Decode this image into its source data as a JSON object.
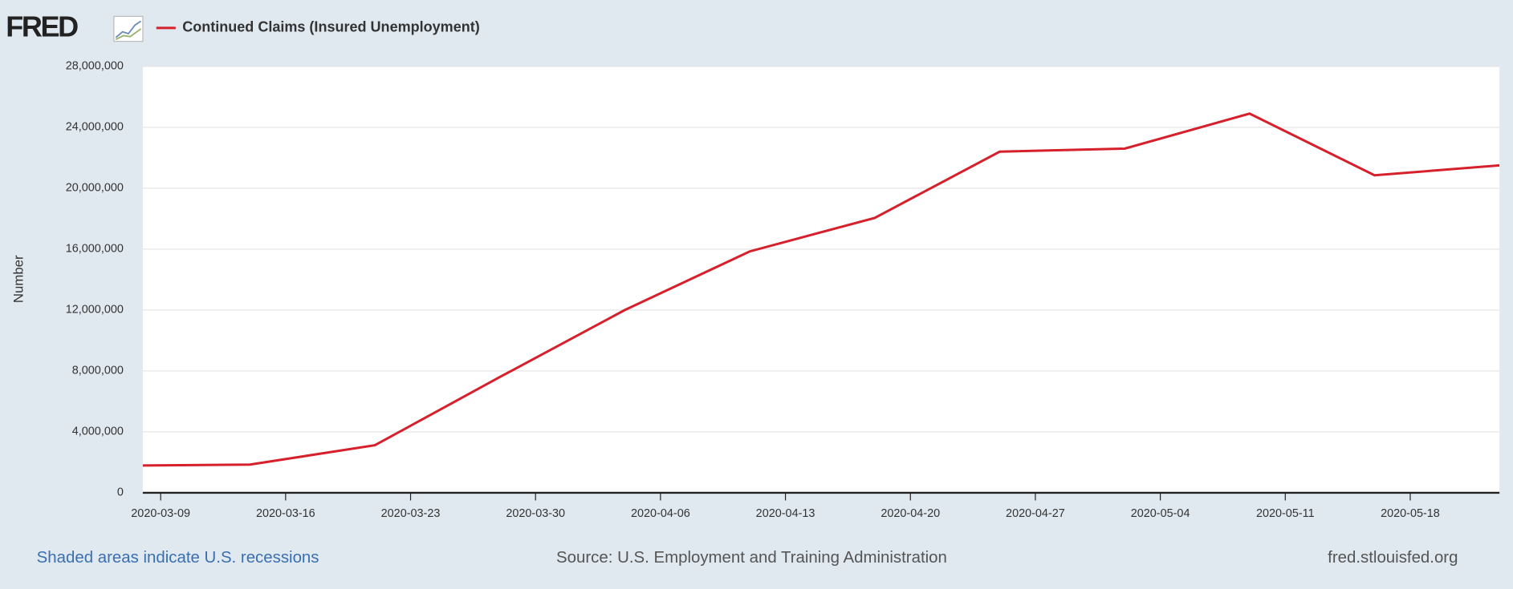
{
  "logo": "FRED",
  "chart_data": {
    "type": "line",
    "ylabel": "Number",
    "x": [
      "2020-03-07",
      "2020-03-14",
      "2020-03-21",
      "2020-03-28",
      "2020-04-04",
      "2020-04-11",
      "2020-04-18",
      "2020-04-25",
      "2020-05-02",
      "2020-05-09",
      "2020-05-16",
      "2020-05-23"
    ],
    "series": [
      {
        "name": "Continued Claims (Insured Unemployment)",
        "color": "#d6202b",
        "values": [
          1780000,
          1850000,
          3120000,
          7600000,
          12000000,
          15850000,
          18050000,
          22400000,
          22600000,
          24900000,
          20850000,
          21500000
        ]
      }
    ],
    "xlim": [
      "2020-03-08",
      "2020-05-23"
    ],
    "xticks": [
      "2020-03-09",
      "2020-03-16",
      "2020-03-23",
      "2020-03-30",
      "2020-04-06",
      "2020-04-13",
      "2020-04-20",
      "2020-04-27",
      "2020-05-04",
      "2020-05-11",
      "2020-05-18"
    ],
    "ylim": [
      0,
      28000000
    ],
    "yticks": [
      0,
      {
        "value": 4000000,
        "label": "4,000,000"
      },
      {
        "value": 8000000,
        "label": "8,000,000"
      },
      {
        "value": 12000000,
        "label": "12,000,000"
      },
      {
        "value": 16000000,
        "label": "16,000,000"
      },
      {
        "value": 20000000,
        "label": "20,000,000"
      },
      {
        "value": 24000000,
        "label": "24,000,000"
      },
      {
        "value": 28000000,
        "label": "28,000,000"
      }
    ],
    "grid": true
  },
  "footer": {
    "recessions": "Shaded areas indicate U.S. recessions",
    "source": "Source: U.S. Employment and Training Administration",
    "site": "fred.stlouisfed.org"
  }
}
